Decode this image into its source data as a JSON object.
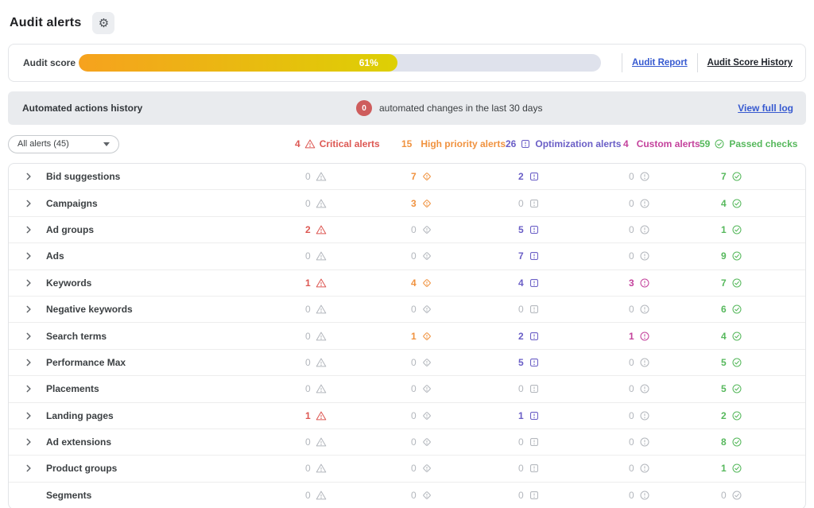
{
  "page": {
    "title": "Audit alerts"
  },
  "audit_score": {
    "label": "Audit score",
    "percent": 61,
    "percent_label": "61%",
    "report_link": "Audit Report",
    "history_link": "Audit Score History"
  },
  "automated_actions": {
    "label": "Automated actions history",
    "badge_count": "0",
    "text": "automated changes in the last 30 days",
    "link": "View full log"
  },
  "filter": {
    "value": "All alerts (45)"
  },
  "columns": [
    {
      "key": "critical",
      "count": "4",
      "label": "Critical alerts",
      "icon": "warning-triangle",
      "color": "#dd5853"
    },
    {
      "key": "high",
      "count": "15",
      "label": "High priority alerts",
      "icon": "diamond-exclamation",
      "color": "#f0923f"
    },
    {
      "key": "optimization",
      "count": "26",
      "label": "Optimization alerts",
      "icon": "square-exclamation",
      "color": "#6a5ec6"
    },
    {
      "key": "custom",
      "count": "4",
      "label": "Custom alerts",
      "icon": "circle-exclamation",
      "color": "#c4429c"
    },
    {
      "key": "passed",
      "count": "59",
      "label": "Passed checks",
      "icon": "circle-check",
      "color": "#56b85c"
    }
  ],
  "rows": [
    {
      "label": "Bid suggestions",
      "expandable": true,
      "values": [
        0,
        7,
        2,
        0,
        7
      ]
    },
    {
      "label": "Campaigns",
      "expandable": true,
      "values": [
        0,
        3,
        0,
        0,
        4
      ]
    },
    {
      "label": "Ad groups",
      "expandable": true,
      "values": [
        2,
        0,
        5,
        0,
        1
      ]
    },
    {
      "label": "Ads",
      "expandable": true,
      "values": [
        0,
        0,
        7,
        0,
        9
      ]
    },
    {
      "label": "Keywords",
      "expandable": true,
      "values": [
        1,
        4,
        4,
        3,
        7
      ]
    },
    {
      "label": "Negative keywords",
      "expandable": true,
      "values": [
        0,
        0,
        0,
        0,
        6
      ]
    },
    {
      "label": "Search terms",
      "expandable": true,
      "values": [
        0,
        1,
        2,
        1,
        4
      ]
    },
    {
      "label": "Performance Max",
      "expandable": true,
      "values": [
        0,
        0,
        5,
        0,
        5
      ]
    },
    {
      "label": "Placements",
      "expandable": true,
      "values": [
        0,
        0,
        0,
        0,
        5
      ]
    },
    {
      "label": "Landing pages",
      "expandable": true,
      "values": [
        1,
        0,
        1,
        0,
        2
      ]
    },
    {
      "label": "Ad extensions",
      "expandable": true,
      "values": [
        0,
        0,
        0,
        0,
        8
      ]
    },
    {
      "label": "Product groups",
      "expandable": true,
      "values": [
        0,
        0,
        0,
        0,
        1
      ]
    },
    {
      "label": "Segments",
      "expandable": false,
      "values": [
        0,
        0,
        0,
        0,
        0
      ]
    }
  ],
  "colors": {
    "zero_value": "#b3b7bd",
    "progress_fill_start": "#f6a21e",
    "progress_fill_end": "#ddd004",
    "progress_track": "#dfe2ec",
    "badge_red": "#ce5d5d",
    "link_blue": "#3659d0",
    "bar_gray": "#e9ebee"
  }
}
